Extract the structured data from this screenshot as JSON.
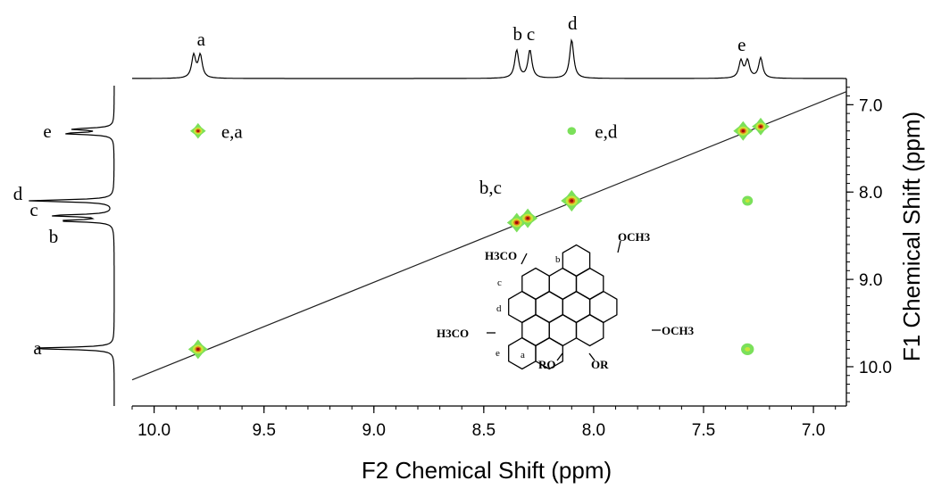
{
  "chart_data": {
    "type": "scatter",
    "xlabel": "F2 Chemical Shift (ppm)",
    "ylabel": "F1 Chemical Shift (ppm)",
    "xlim": [
      10.1,
      6.85
    ],
    "ylim": [
      6.7,
      10.45
    ],
    "x_ticks": [
      10.0,
      9.5,
      9.0,
      8.5,
      8.0,
      7.5,
      7.0
    ],
    "x_tick_labels": [
      "10.0",
      "9.5",
      "9.0",
      "8.5",
      "8.0",
      "7.5",
      "7.0"
    ],
    "y_ticks": [
      7.0,
      8.0,
      9.0,
      10.0
    ],
    "y_tick_labels": [
      "7.0",
      "8.0",
      "9.0",
      "10.0"
    ],
    "diagonal": [
      [
        10.1,
        10.15
      ],
      [
        6.85,
        6.85
      ]
    ],
    "cross_peaks": [
      {
        "x": 9.8,
        "y": 9.8,
        "size": 1.0,
        "label": ""
      },
      {
        "x": 8.35,
        "y": 8.35,
        "size": 1.0,
        "label": ""
      },
      {
        "x": 8.3,
        "y": 8.3,
        "size": 1.0,
        "label": ""
      },
      {
        "x": 8.1,
        "y": 8.1,
        "size": 1.1,
        "label": ""
      },
      {
        "x": 7.32,
        "y": 7.3,
        "size": 1.0,
        "label": ""
      },
      {
        "x": 7.24,
        "y": 7.25,
        "size": 0.9,
        "label": ""
      },
      {
        "x": 9.8,
        "y": 7.3,
        "size": 0.8,
        "label": "e,a"
      },
      {
        "x": 8.1,
        "y": 7.3,
        "size": 0.4,
        "label": "e,d"
      },
      {
        "x": 7.3,
        "y": 8.1,
        "size": 0.5,
        "label": ""
      },
      {
        "x": 7.3,
        "y": 9.8,
        "size": 0.6,
        "label": ""
      }
    ],
    "annotations": [
      {
        "text": "b,c",
        "x": 8.52,
        "y": 8.02
      }
    ],
    "f2_projection_peaks": [
      {
        "ppm": 9.82,
        "height": 0.42,
        "label": ""
      },
      {
        "ppm": 9.79,
        "height": 0.42,
        "label": "a"
      },
      {
        "ppm": 8.35,
        "height": 0.52,
        "label": "b"
      },
      {
        "ppm": 8.29,
        "height": 0.52,
        "label": "c"
      },
      {
        "ppm": 8.1,
        "height": 0.72,
        "label": "d"
      },
      {
        "ppm": 7.33,
        "height": 0.32,
        "label": "e"
      },
      {
        "ppm": 7.3,
        "height": 0.32,
        "label": ""
      },
      {
        "ppm": 7.24,
        "height": 0.38,
        "label": ""
      }
    ],
    "f1_projection_peaks": [
      {
        "ppm": 7.28,
        "height": 0.45,
        "label": ""
      },
      {
        "ppm": 7.33,
        "height": 0.55,
        "label": "e"
      },
      {
        "ppm": 8.1,
        "height": 0.95,
        "label": "d"
      },
      {
        "ppm": 8.27,
        "height": 0.7,
        "label": "c"
      },
      {
        "ppm": 8.33,
        "height": 0.6,
        "label": "b"
      },
      {
        "ppm": 9.79,
        "height": 0.95,
        "label": "a"
      }
    ]
  },
  "molecule": {
    "labels": {
      "top_left": "H3CO",
      "top_right": "OCH3",
      "left": "H3CO",
      "right": "OCH3",
      "bottom_left": "RO",
      "bottom_right": "OR"
    },
    "proton_labels": [
      "a",
      "b",
      "c",
      "d",
      "e"
    ]
  }
}
